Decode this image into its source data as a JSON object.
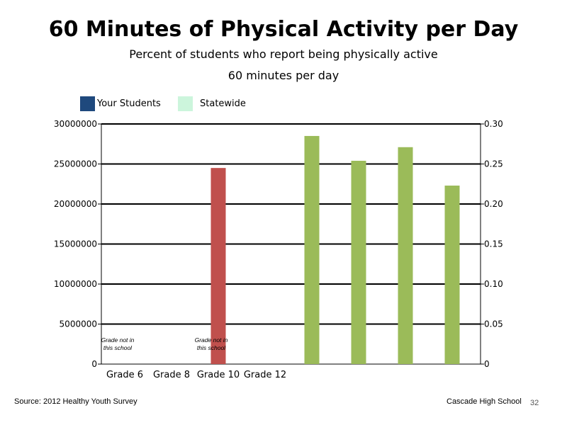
{
  "title": "60 Minutes of Physical Activity per Day",
  "subtitle_line1": "Percent of students who report being physically active",
  "subtitle_line2": "60 minutes per day",
  "legend": [
    {
      "label": "Your Students",
      "color": "#1f497d"
    },
    {
      "label": "Statewide",
      "color": "#ccf5dc"
    }
  ],
  "chart_data": {
    "type": "bar",
    "categories": [
      "Grade 6",
      "Grade 8",
      "Grade 10",
      "Grade 12",
      "",
      "",
      "",
      ""
    ],
    "left_axis": {
      "ylim": [
        0,
        30000000
      ],
      "ticks": [
        "0",
        "5000000",
        "10000000",
        "15000000",
        "20000000",
        "25000000",
        "30000000"
      ]
    },
    "right_axis": {
      "ylim": [
        0,
        0.3
      ],
      "ticks": [
        "0",
        "0.05",
        "0.10",
        "0.15",
        "0.20",
        "0.25",
        "0.30"
      ]
    },
    "grid": true,
    "series": [
      {
        "axis": "left",
        "color": "#c0504d",
        "values": [
          null,
          null,
          24500000,
          null,
          null,
          null,
          null,
          null
        ]
      },
      {
        "axis": "right",
        "color": "#9bbb59",
        "values": [
          null,
          null,
          null,
          null,
          0.285,
          0.254,
          0.271,
          0.223
        ]
      }
    ],
    "annotations": [
      {
        "category_index": 0,
        "line1": "Grade not in",
        "line2": "this school"
      },
      {
        "category_index": 2,
        "line1": "Grade not in",
        "line2": "this school"
      }
    ]
  },
  "footer": {
    "source": "Source: 2012 Healthy Youth Survey",
    "school": "Cascade High School",
    "page": "32"
  }
}
